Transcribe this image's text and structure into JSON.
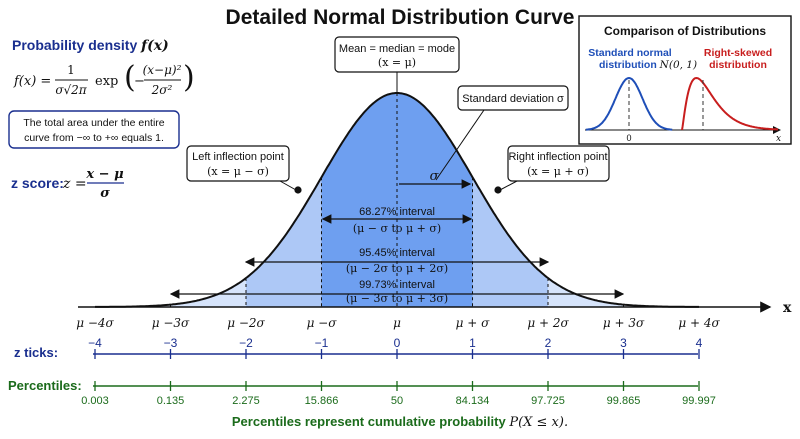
{
  "title": "Detailed Normal Distribution Curve",
  "density": {
    "heading": "Probability density",
    "heading_math": "f(x)",
    "formula_lhs": "f(x) =",
    "formula_num": "1",
    "formula_den": "σ√2π",
    "formula_exp": "exp",
    "formula_inner_num": "(x−μ)²",
    "formula_inner_den": "2σ²",
    "formula_neg": "−"
  },
  "area_note": {
    "line1": "The total area under the entire",
    "line2": "curve from −∞ to +∞ equals 1."
  },
  "zscore": {
    "label": "z score:",
    "lhs": "z =",
    "num": "x − μ",
    "den": "σ"
  },
  "callouts": {
    "mean": {
      "line1": "Mean = median = mode",
      "line2": "(x = μ)"
    },
    "sd": {
      "text": "Standard deviation σ",
      "sigma": "σ"
    },
    "left_inflection": {
      "line1": "Left inflection point",
      "line2": "(x = μ − σ)"
    },
    "right_inflection": {
      "line1": "Right inflection point",
      "line2": "(x = μ + σ)"
    }
  },
  "intervals": [
    {
      "pct": "68.27% interval",
      "range": "(μ − σ to μ + σ)"
    },
    {
      "pct": "95.45% interval",
      "range": "(μ − 2σ to μ + 2σ)"
    },
    {
      "pct": "99.73% interval",
      "range": "(μ − 3σ to μ + 3σ)"
    }
  ],
  "x_axis": {
    "label": "x",
    "ticks": [
      "μ −4σ",
      "μ −3σ",
      "μ −2σ",
      "μ −σ",
      "μ",
      "μ + σ",
      "μ + 2σ",
      "μ + 3σ",
      "μ + 4σ"
    ]
  },
  "z_ticks": {
    "label": "z ticks:",
    "values": [
      "−4",
      "−3",
      "−2",
      "−1",
      "0",
      "1",
      "2",
      "3",
      "4"
    ]
  },
  "percentiles": {
    "label": "Percentiles:",
    "values": [
      "0.003",
      "0.135",
      "2.275",
      "15.866",
      "50",
      "84.134",
      "97.725",
      "99.865",
      "99.997"
    ],
    "footnote": "Percentiles represent cumulative probability",
    "footnote_math": "P(X ≤ x)."
  },
  "inset": {
    "title": "Comparison of Distributions",
    "left_label1": "Standard normal",
    "left_label2": "distribution",
    "left_math": "N(0, 1)",
    "right_label1": "Right-skewed",
    "right_label2": "distribution",
    "zero": "0",
    "x": "x"
  },
  "colors": {
    "band1": "#6e9ff0",
    "band2": "#adc8f6",
    "band3": "#d6e4fb",
    "band4": "#e8f0fd",
    "blue_text": "#1a2f8f",
    "green_text": "#1b6b1b",
    "red_curve": "#c81e1e",
    "blue_curve": "#1f4fb8"
  }
}
